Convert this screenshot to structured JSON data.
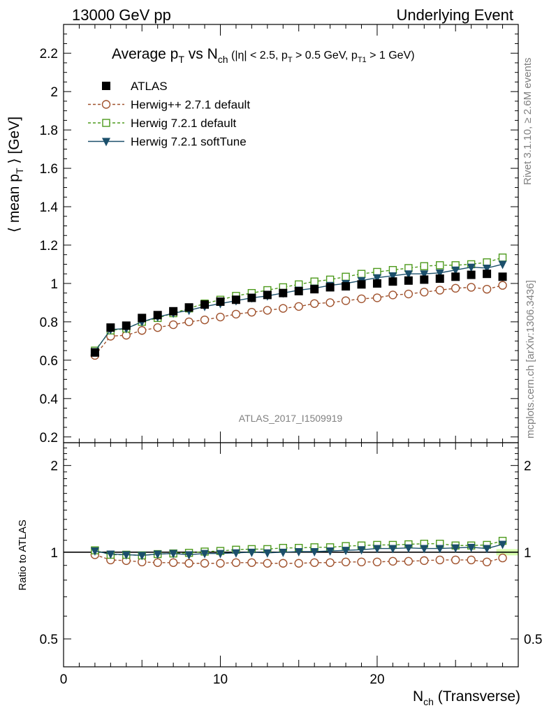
{
  "header": {
    "left": "13000 GeV pp",
    "right": "Underlying Event"
  },
  "title": {
    "main_a": "Average p",
    "main_a_sub": "T",
    "main_b": " vs N",
    "main_b_sub": "ch",
    "cut_a": " (|η| < 2.5, p",
    "cut_a_sub": "T",
    "cut_b": " > 0.5 GeV, p",
    "cut_b_sub": "T1",
    "cut_c": " > 1 GeV)"
  },
  "ylabel": {
    "pre": "⟨ mean p",
    "sub": "T",
    "post": " ⟩ [GeV]"
  },
  "ratio_ylabel": "Ratio to ATLAS",
  "xlabel": {
    "pre": "N",
    "sub": "ch",
    "post": " (Transverse)"
  },
  "side_labels": {
    "rivet": "Rivet 3.1.10, ≥ 2.6M events",
    "mcplots": "mcplots.cern.ch [arXiv:1306.3436]"
  },
  "analysis_tag": "ATLAS_2017_I1509919",
  "colors": {
    "atlas": "#000000",
    "herwigpp": "#a0522d",
    "herwig721": "#4d9a1c",
    "softtune": "#1b4f6b",
    "band": "#ccff99"
  },
  "chart_data": [
    {
      "type": "scatter",
      "panel": "main",
      "xlim": [
        0,
        29
      ],
      "ylim": [
        0.17,
        2.35
      ],
      "yticks": [
        "0.2",
        "0.4",
        "0.6",
        "0.8",
        "1",
        "1.2",
        "1.4",
        "1.6",
        "1.8",
        "2",
        "2.2"
      ],
      "xticks": [
        "0",
        "10",
        "20"
      ],
      "legend_placement": "top-left",
      "x": [
        2,
        3,
        4,
        5,
        6,
        7,
        8,
        9,
        10,
        11,
        12,
        13,
        14,
        15,
        16,
        17,
        18,
        19,
        20,
        21,
        22,
        23,
        24,
        25,
        26,
        27,
        28
      ],
      "series": [
        {
          "name": "ATLAS",
          "marker": "filled-square",
          "line": "none",
          "values": [
            0.64,
            0.77,
            0.78,
            0.82,
            0.835,
            0.855,
            0.875,
            0.89,
            0.905,
            0.915,
            0.925,
            0.94,
            0.95,
            0.96,
            0.97,
            0.98,
            0.985,
            0.995,
            1.0,
            1.01,
            1.015,
            1.02,
            1.025,
            1.035,
            1.045,
            1.05,
            1.035
          ]
        },
        {
          "name": "Herwig++ 2.7.1 default",
          "marker": "open-circle",
          "line": "dashed",
          "values": [
            0.625,
            0.725,
            0.73,
            0.755,
            0.77,
            0.785,
            0.8,
            0.81,
            0.825,
            0.84,
            0.85,
            0.86,
            0.87,
            0.88,
            0.895,
            0.9,
            0.91,
            0.92,
            0.925,
            0.94,
            0.945,
            0.955,
            0.965,
            0.975,
            0.98,
            0.97,
            0.99
          ]
        },
        {
          "name": "Herwig 7.2.1 default",
          "marker": "open-square",
          "line": "dashed",
          "values": [
            0.65,
            0.755,
            0.765,
            0.8,
            0.82,
            0.845,
            0.87,
            0.895,
            0.915,
            0.935,
            0.95,
            0.965,
            0.98,
            0.995,
            1.01,
            1.02,
            1.035,
            1.05,
            1.06,
            1.07,
            1.08,
            1.09,
            1.095,
            1.095,
            1.1,
            1.11,
            1.135
          ]
        },
        {
          "name": "Herwig 7.2.1 softTune",
          "marker": "filled-triangle-down",
          "line": "solid",
          "values": [
            0.645,
            0.76,
            0.765,
            0.8,
            0.825,
            0.845,
            0.86,
            0.88,
            0.895,
            0.91,
            0.925,
            0.935,
            0.95,
            0.965,
            0.975,
            0.99,
            1.0,
            1.015,
            1.03,
            1.04,
            1.05,
            1.05,
            1.055,
            1.07,
            1.085,
            1.08,
            1.1
          ]
        }
      ]
    },
    {
      "type": "scatter",
      "panel": "ratio",
      "ylabel": "Ratio to ATLAS",
      "xlabel": "N_ch (Transverse)",
      "xlim": [
        0,
        29
      ],
      "ylim": [
        0.4,
        2.4
      ],
      "scale": "log",
      "yticks": [
        "0.5",
        "1",
        "2"
      ],
      "xticks": [
        "0",
        "10",
        "20"
      ],
      "x": [
        2,
        3,
        4,
        5,
        6,
        7,
        8,
        9,
        10,
        11,
        12,
        13,
        14,
        15,
        16,
        17,
        18,
        19,
        20,
        21,
        22,
        23,
        24,
        25,
        26,
        27,
        28
      ],
      "series": [
        {
          "name": "Herwig++ 2.7.1 default",
          "marker": "open-circle",
          "line": "dashed",
          "values": [
            0.98,
            0.94,
            0.935,
            0.925,
            0.92,
            0.92,
            0.915,
            0.915,
            0.915,
            0.92,
            0.92,
            0.915,
            0.915,
            0.915,
            0.92,
            0.92,
            0.925,
            0.925,
            0.925,
            0.93,
            0.93,
            0.935,
            0.94,
            0.94,
            0.94,
            0.925,
            0.955
          ]
        },
        {
          "name": "Herwig 7.2.1 default",
          "marker": "open-square",
          "line": "dashed",
          "values": [
            1.015,
            0.98,
            0.98,
            0.975,
            0.985,
            0.99,
            0.995,
            1.005,
            1.01,
            1.02,
            1.025,
            1.025,
            1.035,
            1.035,
            1.04,
            1.04,
            1.05,
            1.055,
            1.06,
            1.06,
            1.065,
            1.07,
            1.07,
            1.055,
            1.055,
            1.06,
            1.095
          ]
        },
        {
          "name": "Herwig 7.2.1 softTune",
          "marker": "filled-triangle-down",
          "line": "solid",
          "values": [
            1.01,
            0.985,
            0.98,
            0.975,
            0.985,
            0.99,
            0.98,
            0.99,
            0.99,
            0.995,
            1.0,
            0.995,
            1.0,
            1.005,
            1.005,
            1.01,
            1.015,
            1.02,
            1.03,
            1.03,
            1.035,
            1.03,
            1.03,
            1.035,
            1.04,
            1.03,
            1.065
          ]
        }
      ]
    }
  ]
}
